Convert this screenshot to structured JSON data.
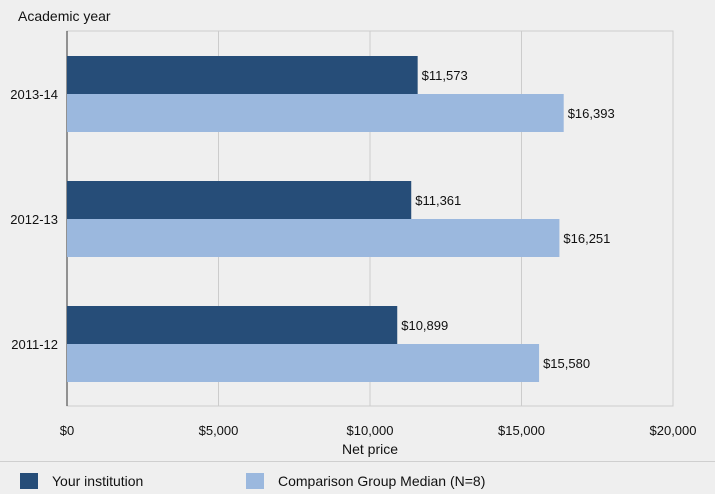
{
  "chart_data": {
    "type": "bar",
    "orientation": "horizontal",
    "categories": [
      "2013-14",
      "2012-13",
      "2011-12"
    ],
    "series": [
      {
        "name": "Your institution",
        "values": [
          11573,
          11361,
          10899
        ],
        "labels": [
          "$11,573",
          "$11,361",
          "$10,899"
        ],
        "color": "#264d78"
      },
      {
        "name": "Comparison Group Median (N=8)",
        "values": [
          16393,
          16251,
          15580
        ],
        "labels": [
          "$16,393",
          "$16,251",
          "$15,580"
        ],
        "color": "#9bb8de"
      }
    ],
    "ylabel": "Academic year",
    "xlabel": "Net price",
    "xlim": [
      0,
      20000
    ],
    "xticks": [
      0,
      5000,
      10000,
      15000,
      20000
    ],
    "xtick_labels": [
      "$0",
      "$5,000",
      "$10,000",
      "$15,000",
      "$20,000"
    ],
    "grid": true,
    "legend_position": "bottom"
  },
  "colors": {
    "background": "#efefef",
    "grid": "#cccccc",
    "axis": "#333333"
  }
}
